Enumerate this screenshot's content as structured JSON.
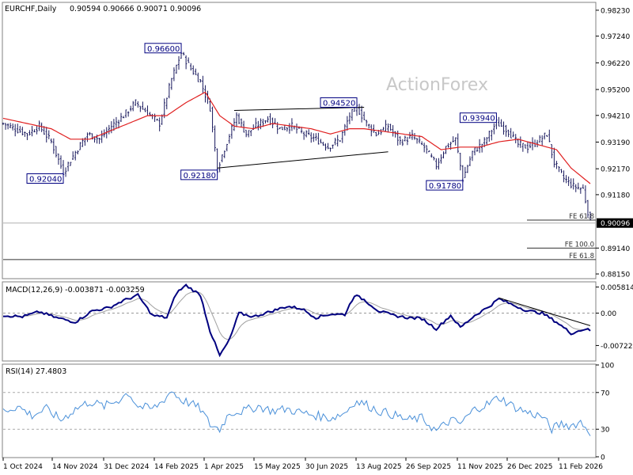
{
  "header": {
    "symbol": "EURCHF,Daily",
    "ohlc": "0.90594 0.90666 0.90071 0.90096"
  },
  "watermark": "ActionForex",
  "colors": {
    "bars": "#1a1a5e",
    "ma": "#e02020",
    "macd": "#000080",
    "signal": "#a0a0a0",
    "rsi": "#4a90d9",
    "label_box": "#000080"
  },
  "chart_data": [
    {
      "type": "line",
      "name": "price",
      "ylim": [
        0.88,
        0.985
      ],
      "y_ticks": [
        "0.98230",
        "0.97240",
        "0.96220",
        "0.95200",
        "0.94210",
        "0.93190",
        "0.92170",
        "0.91180",
        "0.90096",
        "0.89140",
        "0.88150"
      ],
      "x_ticks": [
        "1 Oct 2024",
        "14 Nov 2024",
        "31 Dec 2024",
        "14 Feb 2025",
        "1 Apr 2025",
        "15 May 2025",
        "30 Jun 2025",
        "13 Aug 2025",
        "26 Sep 2025",
        "11 Nov 2025",
        "26 Dec 2025",
        "11 Feb 2026"
      ],
      "price_keypoints": [
        [
          0,
          0.939
        ],
        [
          5,
          0.937
        ],
        [
          10,
          0.935
        ],
        [
          15,
          0.938
        ],
        [
          20,
          0.932
        ],
        [
          25,
          0.9205
        ],
        [
          30,
          0.928
        ],
        [
          35,
          0.935
        ],
        [
          40,
          0.933
        ],
        [
          45,
          0.938
        ],
        [
          50,
          0.942
        ],
        [
          55,
          0.947
        ],
        [
          60,
          0.943
        ],
        [
          65,
          0.939
        ],
        [
          70,
          0.956
        ],
        [
          74,
          0.966
        ],
        [
          78,
          0.96
        ],
        [
          82,
          0.955
        ],
        [
          86,
          0.945
        ],
        [
          89,
          0.9218
        ],
        [
          93,
          0.932
        ],
        [
          97,
          0.942
        ],
        [
          101,
          0.935
        ],
        [
          105,
          0.938
        ],
        [
          110,
          0.941
        ],
        [
          115,
          0.937
        ],
        [
          120,
          0.938
        ],
        [
          125,
          0.935
        ],
        [
          130,
          0.933
        ],
        [
          135,
          0.93
        ],
        [
          140,
          0.933
        ],
        [
          144,
          0.942
        ],
        [
          147,
          0.9452
        ],
        [
          151,
          0.939
        ],
        [
          155,
          0.935
        ],
        [
          160,
          0.938
        ],
        [
          165,
          0.932
        ],
        [
          170,
          0.934
        ],
        [
          175,
          0.93
        ],
        [
          180,
          0.923
        ],
        [
          184,
          0.93
        ],
        [
          188,
          0.933
        ],
        [
          191,
          0.9178
        ],
        [
          195,
          0.928
        ],
        [
          200,
          0.932
        ],
        [
          205,
          0.9394
        ],
        [
          210,
          0.936
        ],
        [
          214,
          0.931
        ],
        [
          218,
          0.93
        ],
        [
          222,
          0.932
        ],
        [
          226,
          0.935
        ],
        [
          229,
          0.924
        ],
        [
          233,
          0.918
        ],
        [
          237,
          0.915
        ],
        [
          241,
          0.914
        ],
        [
          244,
          0.901
        ]
      ],
      "ma_keypoints": [
        [
          0,
          0.941
        ],
        [
          10,
          0.939
        ],
        [
          20,
          0.937
        ],
        [
          28,
          0.933
        ],
        [
          36,
          0.933
        ],
        [
          44,
          0.936
        ],
        [
          52,
          0.939
        ],
        [
          60,
          0.942
        ],
        [
          68,
          0.942
        ],
        [
          76,
          0.947
        ],
        [
          84,
          0.951
        ],
        [
          90,
          0.942
        ],
        [
          96,
          0.938
        ],
        [
          104,
          0.937
        ],
        [
          112,
          0.939
        ],
        [
          120,
          0.938
        ],
        [
          128,
          0.937
        ],
        [
          136,
          0.935
        ],
        [
          144,
          0.937
        ],
        [
          150,
          0.937
        ],
        [
          158,
          0.936
        ],
        [
          166,
          0.935
        ],
        [
          174,
          0.934
        ],
        [
          182,
          0.929
        ],
        [
          190,
          0.93
        ],
        [
          198,
          0.93
        ],
        [
          206,
          0.932
        ],
        [
          214,
          0.933
        ],
        [
          222,
          0.931
        ],
        [
          230,
          0.929
        ],
        [
          236,
          0.922
        ],
        [
          244,
          0.916
        ]
      ],
      "labels": [
        {
          "text": "0.96600",
          "x": 74,
          "y": 0.966
        },
        {
          "text": "0.92040",
          "x": 25,
          "y": 0.9204
        },
        {
          "text": "0.92180",
          "x": 89,
          "y": 0.9218
        },
        {
          "text": "0.94520",
          "x": 147,
          "y": 0.9452
        },
        {
          "text": "0.93940",
          "x": 205,
          "y": 0.9394
        },
        {
          "text": "0.91780",
          "x": 191,
          "y": 0.9178
        }
      ],
      "annotations": [
        {
          "text": "FE 61.8",
          "y": 0.9021
        },
        {
          "text": "FE 100.0",
          "y": 0.8914
        },
        {
          "text": "FE 61.8",
          "y": 0.887
        }
      ],
      "current": "0.90096"
    },
    {
      "type": "line",
      "name": "MACD",
      "legend": "MACD(12,26,9) -0.003871 -0.003259",
      "ylim": [
        -0.0105,
        0.0068
      ],
      "y_ticks": [
        "0.005814",
        "0.00",
        "-0.007222"
      ],
      "keypoints": [
        [
          0,
          -0.0005
        ],
        [
          8,
          -0.0008
        ],
        [
          15,
          0.0003
        ],
        [
          22,
          -0.001
        ],
        [
          30,
          -0.002
        ],
        [
          37,
          0.0005
        ],
        [
          44,
          0.0012
        ],
        [
          50,
          0.0028
        ],
        [
          56,
          0.004
        ],
        [
          62,
          -0.0005
        ],
        [
          68,
          -0.001
        ],
        [
          72,
          0.0045
        ],
        [
          76,
          0.0062
        ],
        [
          82,
          0.004
        ],
        [
          86,
          -0.004
        ],
        [
          90,
          -0.0095
        ],
        [
          94,
          -0.006
        ],
        [
          98,
          0.0
        ],
        [
          104,
          -0.0008
        ],
        [
          112,
          0.0005
        ],
        [
          118,
          0.0015
        ],
        [
          124,
          0.001
        ],
        [
          130,
          -0.001
        ],
        [
          136,
          -0.0002
        ],
        [
          142,
          -0.0003
        ],
        [
          146,
          0.004
        ],
        [
          150,
          0.003
        ],
        [
          156,
          0.0005
        ],
        [
          162,
          -0.0005
        ],
        [
          168,
          -0.001
        ],
        [
          174,
          -0.0012
        ],
        [
          180,
          -0.0035
        ],
        [
          186,
          -0.0005
        ],
        [
          190,
          -0.0032
        ],
        [
          196,
          -0.0005
        ],
        [
          202,
          0.0015
        ],
        [
          206,
          0.0032
        ],
        [
          212,
          0.0018
        ],
        [
          218,
          0.0005
        ],
        [
          224,
          0.0
        ],
        [
          230,
          -0.002
        ],
        [
          236,
          -0.0045
        ],
        [
          242,
          -0.0035
        ],
        [
          244,
          -0.0039
        ]
      ]
    },
    {
      "type": "line",
      "name": "RSI",
      "legend": "RSI(14) 27.4803",
      "ylim": [
        0,
        100
      ],
      "y_ticks": [
        "100",
        "70",
        "30",
        "0"
      ],
      "keypoints": [
        [
          0,
          50
        ],
        [
          6,
          55
        ],
        [
          12,
          45
        ],
        [
          18,
          52
        ],
        [
          24,
          40
        ],
        [
          30,
          52
        ],
        [
          36,
          60
        ],
        [
          42,
          55
        ],
        [
          48,
          62
        ],
        [
          52,
          70
        ],
        [
          56,
          55
        ],
        [
          62,
          52
        ],
        [
          66,
          60
        ],
        [
          70,
          72
        ],
        [
          74,
          62
        ],
        [
          78,
          58
        ],
        [
          82,
          52
        ],
        [
          86,
          35
        ],
        [
          90,
          30
        ],
        [
          94,
          48
        ],
        [
          100,
          50
        ],
        [
          106,
          55
        ],
        [
          112,
          50
        ],
        [
          118,
          52
        ],
        [
          124,
          48
        ],
        [
          130,
          45
        ],
        [
          136,
          42
        ],
        [
          142,
          48
        ],
        [
          146,
          60
        ],
        [
          150,
          58
        ],
        [
          156,
          50
        ],
        [
          162,
          46
        ],
        [
          168,
          40
        ],
        [
          174,
          42
        ],
        [
          180,
          28
        ],
        [
          186,
          40
        ],
        [
          190,
          36
        ],
        [
          196,
          52
        ],
        [
          202,
          58
        ],
        [
          206,
          65
        ],
        [
          212,
          55
        ],
        [
          218,
          48
        ],
        [
          224,
          44
        ],
        [
          228,
          30
        ],
        [
          232,
          36
        ],
        [
          236,
          34
        ],
        [
          240,
          38
        ],
        [
          244,
          27
        ]
      ]
    }
  ]
}
